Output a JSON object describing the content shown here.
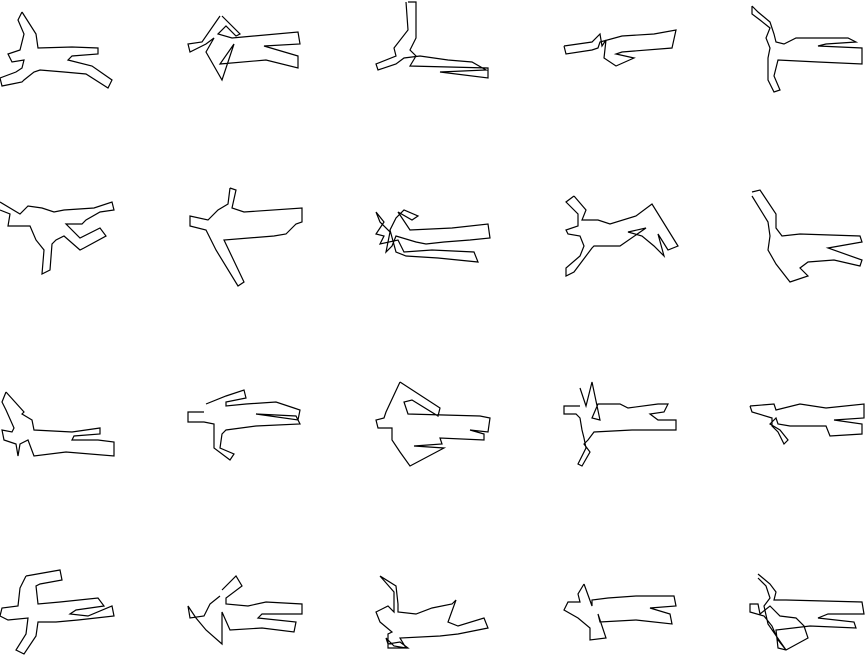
{
  "figure": {
    "layout": {
      "rows": 4,
      "columns": 5
    },
    "stroke_color": "#000000",
    "background_color": "#ffffff",
    "fill": "none",
    "silhouettes": [
      {
        "id": "s-1-1",
        "pose": "running-figure"
      },
      {
        "id": "s-1-2",
        "pose": "folded-arms-figure"
      },
      {
        "id": "s-1-3",
        "pose": "raised-arm-figure"
      },
      {
        "id": "s-1-4",
        "pose": "compact-figure"
      },
      {
        "id": "s-1-5",
        "pose": "bent-arm-figure"
      },
      {
        "id": "s-2-1",
        "pose": "kicking-figure"
      },
      {
        "id": "s-2-2",
        "pose": "lunging-figure"
      },
      {
        "id": "s-2-3",
        "pose": "crossed-arms-figure"
      },
      {
        "id": "s-2-4",
        "pose": "wide-leg-figure"
      },
      {
        "id": "s-2-5",
        "pose": "reaching-figure"
      },
      {
        "id": "s-3-1",
        "pose": "tangled-figure"
      },
      {
        "id": "s-3-2",
        "pose": "standing-figure"
      },
      {
        "id": "s-3-3",
        "pose": "diamond-arm-figure"
      },
      {
        "id": "s-3-4",
        "pose": "sword-figure"
      },
      {
        "id": "s-3-5",
        "pose": "lying-figure"
      },
      {
        "id": "s-4-1",
        "pose": "hooked-arm-figure"
      },
      {
        "id": "s-4-2",
        "pose": "zigzag-figure"
      },
      {
        "id": "s-4-3",
        "pose": "climbing-figure"
      },
      {
        "id": "s-4-4",
        "pose": "split-figure"
      },
      {
        "id": "s-4-5",
        "pose": "bending-figure"
      }
    ]
  }
}
